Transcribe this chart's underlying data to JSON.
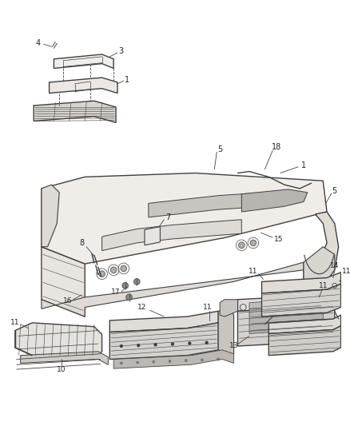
{
  "bg_color": "#ffffff",
  "line_color": "#404040",
  "fig_width": 4.38,
  "fig_height": 5.33,
  "dpi": 100
}
